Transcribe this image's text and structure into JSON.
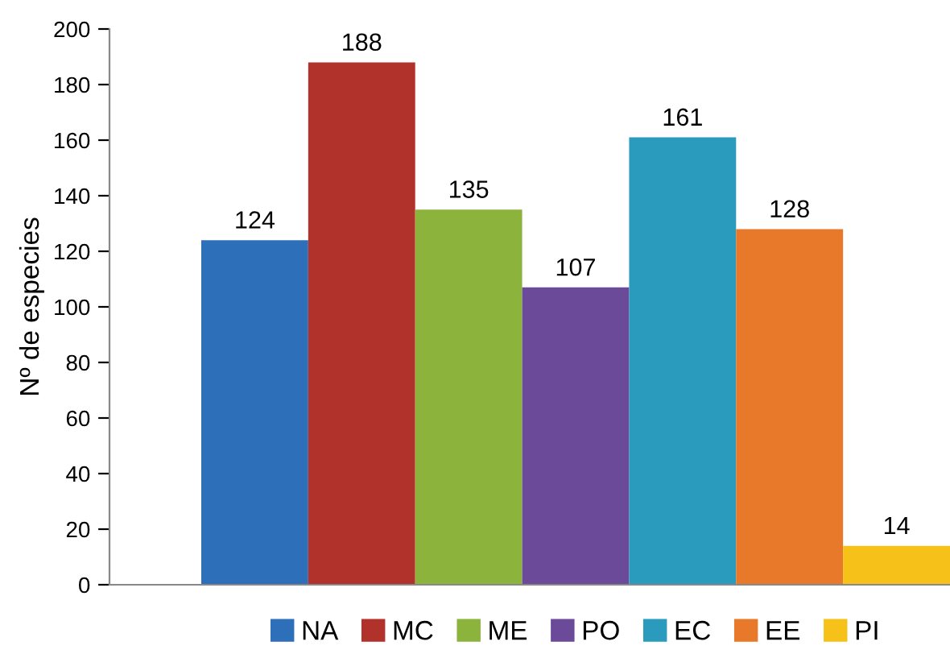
{
  "chart_data": {
    "type": "bar",
    "ylabel": "Nº de especies",
    "categories": [
      null,
      null,
      null,
      null,
      null,
      null,
      null
    ],
    "series": [
      {
        "name": "NA",
        "color": "#2e6fba",
        "values": [
          124,
          null,
          null,
          null,
          null,
          null,
          null
        ]
      },
      {
        "name": "MC",
        "color": "#b1312b",
        "values": [
          null,
          188,
          null,
          null,
          null,
          null,
          null
        ]
      },
      {
        "name": "ME",
        "color": "#8cb33c",
        "values": [
          null,
          null,
          135,
          null,
          null,
          null,
          null
        ]
      },
      {
        "name": "PO",
        "color": "#6b4a9a",
        "values": [
          null,
          null,
          null,
          107,
          null,
          null,
          null
        ]
      },
      {
        "name": "EC",
        "color": "#2a9bbd",
        "values": [
          null,
          null,
          null,
          null,
          161,
          null,
          null
        ]
      },
      {
        "name": "EE",
        "color": "#e8782a",
        "values": [
          null,
          null,
          null,
          null,
          null,
          128,
          null
        ]
      },
      {
        "name": "PI",
        "color": "#f6c21a",
        "values": [
          null,
          null,
          null,
          null,
          null,
          null,
          14
        ]
      }
    ],
    "ylim": [
      0,
      200
    ],
    "yticks": [
      0,
      20,
      40,
      60,
      80,
      100,
      120,
      140,
      160,
      180,
      200
    ],
    "stacked": true,
    "grid": false,
    "legend": "bottom",
    "data_labels": true
  }
}
